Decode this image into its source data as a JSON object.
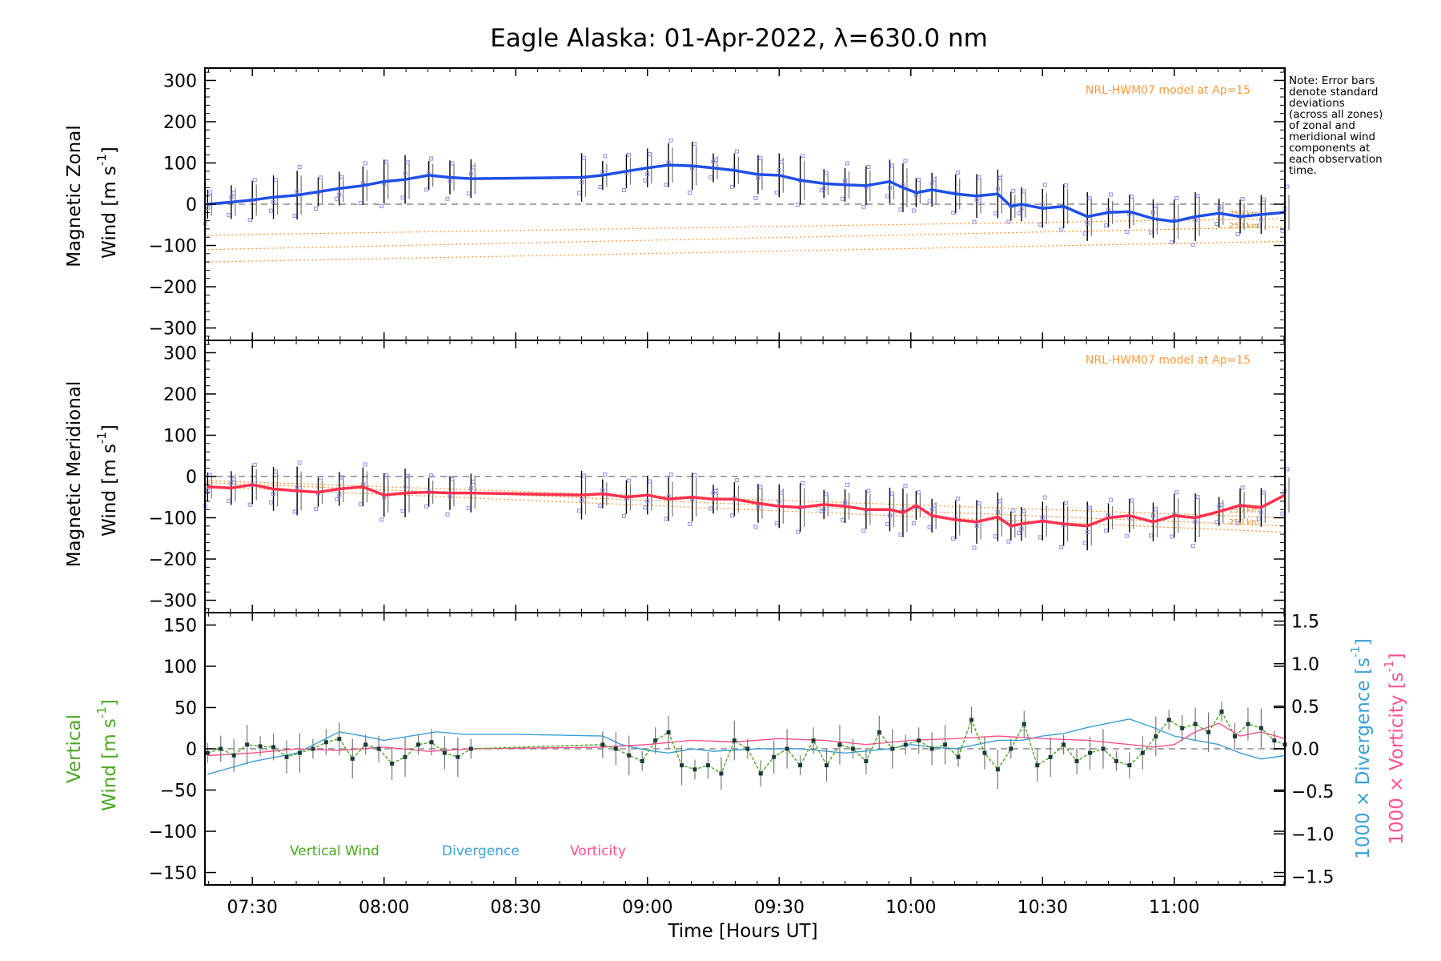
{
  "title": "Eagle Alaska: 01-Apr-2022, λ=630.0 nm",
  "note": [
    "Note: Error bars",
    "denote standard",
    "deviations",
    "(across all zones)",
    "of zonal and",
    "meridional wind",
    "components at",
    "each observation",
    "time."
  ],
  "model_label": "NRL-HWM07 model at Ap=15",
  "altitude_labels": [
    "250 km",
    "250 km"
  ],
  "xlabel": "Time [Hours UT]",
  "x_ticks": [
    "07:30",
    "08:00",
    "08:30",
    "09:00",
    "09:30",
    "10:00",
    "10:30",
    "11:00"
  ],
  "colors": {
    "zonal": "#1f4fe6",
    "meridional": "#ff3050",
    "vertical": "#4aa81e",
    "divergence": "#3a9fd6",
    "vorticity": "#ff4f8f",
    "model": "#ff8c28",
    "scatter": "#8c8ce6"
  },
  "chart_data": [
    {
      "type": "line",
      "panel": "zonal",
      "ylabel_lines": [
        "Magnetic Zonal",
        "Wind [m s",
        "-1",
        "]"
      ],
      "ylim": [
        -330,
        330
      ],
      "y_ticks": [
        "300",
        "200",
        "100",
        "0",
        "−100",
        "−200",
        "−300"
      ],
      "xlim_hours": [
        7.32,
        11.42
      ],
      "series": [
        {
          "name": "Magnetic Zonal Wind",
          "x": [
            7.33,
            7.42,
            7.5,
            7.58,
            7.67,
            7.75,
            7.83,
            7.92,
            8.0,
            8.08,
            8.17,
            8.25,
            8.33,
            8.5,
            8.75,
            8.83,
            8.92,
            9.0,
            9.08,
            9.17,
            9.25,
            9.33,
            9.42,
            9.5,
            9.58,
            9.67,
            9.75,
            9.83,
            9.92,
            9.97,
            10.02,
            10.08,
            10.17,
            10.25,
            10.33,
            10.38,
            10.42,
            10.5,
            10.58,
            10.67,
            10.75,
            10.83,
            10.92,
            11.0,
            11.08,
            11.17,
            11.25,
            11.33,
            11.42
          ],
          "y": [
            0,
            5,
            10,
            17,
            22,
            30,
            38,
            45,
            55,
            60,
            70,
            65,
            62,
            63,
            65,
            70,
            80,
            88,
            95,
            93,
            88,
            82,
            72,
            70,
            58,
            50,
            47,
            45,
            55,
            40,
            28,
            35,
            25,
            20,
            25,
            -5,
            0,
            -10,
            -5,
            -30,
            -20,
            -18,
            -35,
            -42,
            -30,
            -22,
            -30,
            -25,
            -20
          ]
        }
      ],
      "model_ranges": [
        {
          "x": [
            7.33,
            11.42
          ],
          "y": [
            -75,
            -35
          ]
        },
        {
          "x": [
            7.33,
            11.42
          ],
          "y": [
            -110,
            -55
          ]
        },
        {
          "x": [
            7.33,
            11.42
          ],
          "y": [
            -140,
            -90
          ]
        }
      ]
    },
    {
      "type": "line",
      "panel": "meridional",
      "ylabel_lines": [
        "Magnetic Meridional",
        "Wind [m s",
        "-1",
        "]"
      ],
      "ylim": [
        -330,
        330
      ],
      "y_ticks": [
        "300",
        "200",
        "100",
        "0",
        "−100",
        "−200",
        "−300"
      ],
      "series": [
        {
          "name": "Magnetic Meridional Wind",
          "x": [
            7.33,
            7.42,
            7.5,
            7.58,
            7.67,
            7.75,
            7.83,
            7.92,
            8.0,
            8.08,
            8.17,
            8.25,
            8.33,
            8.5,
            8.75,
            8.83,
            8.92,
            9.0,
            9.08,
            9.17,
            9.25,
            9.33,
            9.42,
            9.5,
            9.58,
            9.67,
            9.75,
            9.83,
            9.92,
            9.97,
            10.02,
            10.08,
            10.17,
            10.25,
            10.33,
            10.38,
            10.42,
            10.5,
            10.58,
            10.67,
            10.75,
            10.83,
            10.92,
            11.0,
            11.08,
            11.17,
            11.25,
            11.33,
            11.42
          ],
          "y": [
            -25,
            -28,
            -20,
            -30,
            -35,
            -38,
            -30,
            -25,
            -45,
            -40,
            -38,
            -40,
            -40,
            -42,
            -45,
            -42,
            -50,
            -45,
            -55,
            -50,
            -55,
            -55,
            -65,
            -72,
            -75,
            -68,
            -72,
            -80,
            -80,
            -88,
            -70,
            -95,
            -105,
            -110,
            -98,
            -120,
            -115,
            -108,
            -115,
            -120,
            -100,
            -95,
            -110,
            -95,
            -100,
            -85,
            -70,
            -75,
            -45
          ]
        }
      ],
      "model_ranges": [
        {
          "x": [
            7.33,
            11.42
          ],
          "y": [
            -15,
            -120
          ]
        },
        {
          "x": [
            7.33,
            11.42
          ],
          "y": [
            -25,
            -135
          ]
        },
        {
          "x": [
            7.33,
            11.42
          ],
          "y": [
            -10,
            -100
          ]
        }
      ]
    },
    {
      "type": "line",
      "panel": "vertical",
      "ylabel_left": [
        "Vertical",
        "Wind [m s",
        "-1",
        "]"
      ],
      "ylabel_right_div": [
        "1000 × Divergence [s",
        "-1",
        "]"
      ],
      "ylabel_right_vort": [
        "1000 × Vorticity [s",
        "-1",
        "]"
      ],
      "ylim": [
        -165,
        165
      ],
      "y_ticks": [
        "150",
        "100",
        "50",
        "0",
        "−50",
        "−100",
        "−150"
      ],
      "y2lim": [
        -1.6,
        1.6
      ],
      "y2_ticks": [
        "1.5",
        "1.0",
        "0.5",
        "0.0",
        "−0.5",
        "−1.0",
        "−1.5"
      ],
      "legend": [
        "Vertical Wind",
        "Divergence",
        "Vorticity"
      ],
      "series": [
        {
          "name": "Vertical Wind",
          "x": [
            7.33,
            7.38,
            7.43,
            7.48,
            7.53,
            7.58,
            7.63,
            7.68,
            7.73,
            7.78,
            7.83,
            7.88,
            7.93,
            7.98,
            8.03,
            8.08,
            8.13,
            8.18,
            8.23,
            8.28,
            8.33,
            8.83,
            8.88,
            8.93,
            8.98,
            9.03,
            9.08,
            9.13,
            9.18,
            9.23,
            9.28,
            9.33,
            9.38,
            9.43,
            9.48,
            9.53,
            9.58,
            9.63,
            9.68,
            9.73,
            9.78,
            9.83,
            9.88,
            9.93,
            9.98,
            10.03,
            10.08,
            10.13,
            10.18,
            10.23,
            10.28,
            10.33,
            10.38,
            10.43,
            10.48,
            10.53,
            10.58,
            10.63,
            10.68,
            10.73,
            10.78,
            10.83,
            10.88,
            10.93,
            10.98,
            11.03,
            11.08,
            11.13,
            11.18,
            11.23,
            11.28,
            11.33,
            11.38,
            11.42
          ],
          "y": [
            -5,
            0,
            -8,
            5,
            3,
            2,
            -10,
            -5,
            0,
            8,
            12,
            -12,
            5,
            0,
            -18,
            -10,
            5,
            8,
            -5,
            -10,
            0,
            5,
            0,
            -8,
            -15,
            10,
            20,
            -20,
            -25,
            -20,
            -30,
            10,
            0,
            -30,
            -10,
            0,
            -20,
            10,
            -20,
            5,
            0,
            -15,
            20,
            0,
            5,
            10,
            0,
            5,
            -10,
            35,
            -5,
            -25,
            0,
            30,
            -20,
            -10,
            5,
            -15,
            -5,
            0,
            -15,
            -20,
            -5,
            15,
            35,
            25,
            30,
            20,
            45,
            15,
            30,
            25,
            10,
            5
          ]
        },
        {
          "name": "Divergence",
          "x": [
            7.33,
            7.5,
            7.67,
            7.83,
            7.92,
            8.0,
            8.1,
            8.2,
            8.3,
            8.5,
            8.83,
            8.9,
            9.0,
            9.08,
            9.17,
            9.25,
            9.42,
            9.58,
            9.75,
            9.92,
            10.0,
            10.08,
            10.17,
            10.25,
            10.33,
            10.42,
            10.5,
            10.58,
            10.67,
            10.75,
            10.83,
            10.92,
            11.0,
            11.08,
            11.17,
            11.25,
            11.33,
            11.42
          ],
          "y": [
            -0.3,
            -0.15,
            -0.05,
            0.2,
            0.15,
            0.1,
            0.15,
            0.2,
            0.17,
            0.17,
            0.15,
            0.05,
            -0.02,
            -0.05,
            0.0,
            -0.03,
            0.0,
            0.0,
            -0.05,
            0.0,
            0.05,
            0.02,
            0.0,
            0.05,
            0.1,
            0.1,
            0.15,
            0.18,
            0.25,
            0.3,
            0.35,
            0.25,
            0.15,
            0.1,
            0.05,
            -0.05,
            -0.12,
            -0.08
          ]
        },
        {
          "name": "Vorticity",
          "x": [
            7.33,
            7.5,
            7.67,
            7.83,
            8.0,
            8.17,
            8.33,
            8.83,
            9.0,
            9.17,
            9.33,
            9.5,
            9.67,
            9.83,
            10.0,
            10.17,
            10.33,
            10.5,
            10.67,
            10.83,
            10.92,
            11.0,
            11.08,
            11.17,
            11.25,
            11.33,
            11.42
          ],
          "y": [
            -0.08,
            -0.05,
            0.0,
            -0.02,
            0.02,
            -0.03,
            0.0,
            0.02,
            0.05,
            0.1,
            0.08,
            0.12,
            0.1,
            0.05,
            0.1,
            0.12,
            0.15,
            0.12,
            0.1,
            0.05,
            0.02,
            0.05,
            0.2,
            0.3,
            0.15,
            0.2,
            0.12
          ]
        }
      ]
    }
  ]
}
